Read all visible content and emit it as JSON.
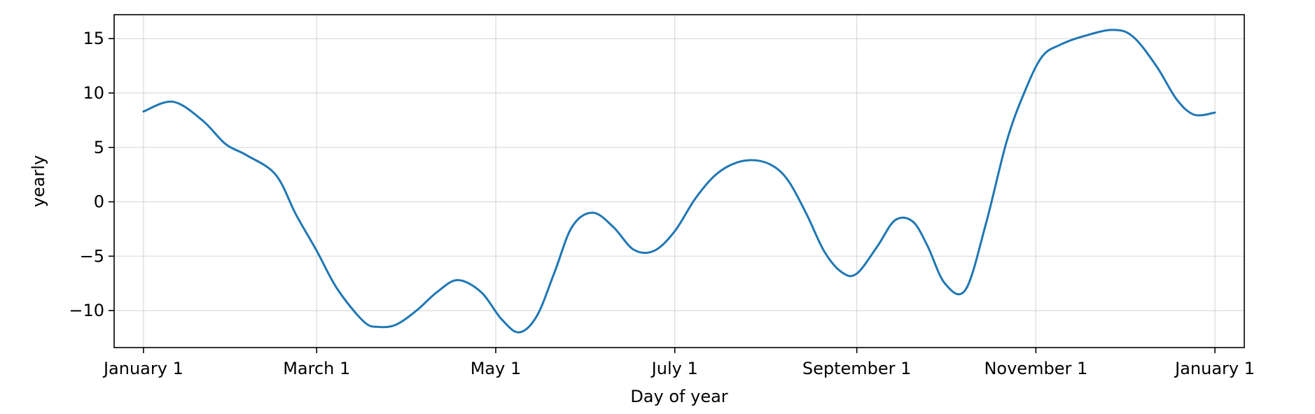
{
  "chart_data": {
    "type": "line",
    "title": "",
    "xlabel": "Day of year",
    "ylabel": "yearly",
    "grid": true,
    "legend": "none",
    "xlim": [
      -10,
      375
    ],
    "ylim": [
      -13.4,
      17.2
    ],
    "x_ticks": [
      {
        "value": 0,
        "label": "January 1"
      },
      {
        "value": 59,
        "label": "March 1"
      },
      {
        "value": 120,
        "label": "May 1"
      },
      {
        "value": 181,
        "label": "July 1"
      },
      {
        "value": 243,
        "label": "September 1"
      },
      {
        "value": 304,
        "label": "November 1"
      },
      {
        "value": 365,
        "label": "January 1"
      }
    ],
    "y_ticks": [
      {
        "value": 15,
        "label": "15"
      },
      {
        "value": 10,
        "label": "10"
      },
      {
        "value": 5,
        "label": "5"
      },
      {
        "value": 0,
        "label": "0"
      },
      {
        "value": -5,
        "label": "−5"
      },
      {
        "value": -10,
        "label": "−10"
      }
    ],
    "series": [
      {
        "color": "#1f77b4",
        "x": [
          0,
          10,
          20,
          28,
          35,
          45,
          52,
          59,
          66,
          75,
          80,
          86,
          93,
          100,
          107,
          115,
          122,
          128,
          134,
          140,
          146,
          153,
          160,
          167,
          174,
          181,
          188,
          195,
          202,
          209,
          215,
          220,
          226,
          232,
          238,
          243,
          250,
          256,
          262,
          267,
          273,
          280,
          287,
          294,
          300,
          306,
          312,
          320,
          330,
          337,
          345,
          352,
          358,
          365
        ],
        "y": [
          8.3,
          9.2,
          7.5,
          5.3,
          4.3,
          2.5,
          -1.2,
          -4.5,
          -8.0,
          -11.0,
          -11.5,
          -11.3,
          -10.0,
          -8.3,
          -7.2,
          -8.3,
          -10.8,
          -12.0,
          -10.5,
          -6.5,
          -2.3,
          -1.0,
          -2.3,
          -4.4,
          -4.5,
          -2.7,
          0.3,
          2.5,
          3.6,
          3.8,
          3.2,
          1.8,
          -1.2,
          -4.6,
          -6.5,
          -6.6,
          -4.1,
          -1.7,
          -1.8,
          -4.0,
          -7.5,
          -8.1,
          -2.0,
          5.5,
          10.0,
          13.3,
          14.4,
          15.2,
          15.8,
          15.2,
          12.5,
          9.4,
          8.0,
          8.2
        ]
      }
    ]
  }
}
